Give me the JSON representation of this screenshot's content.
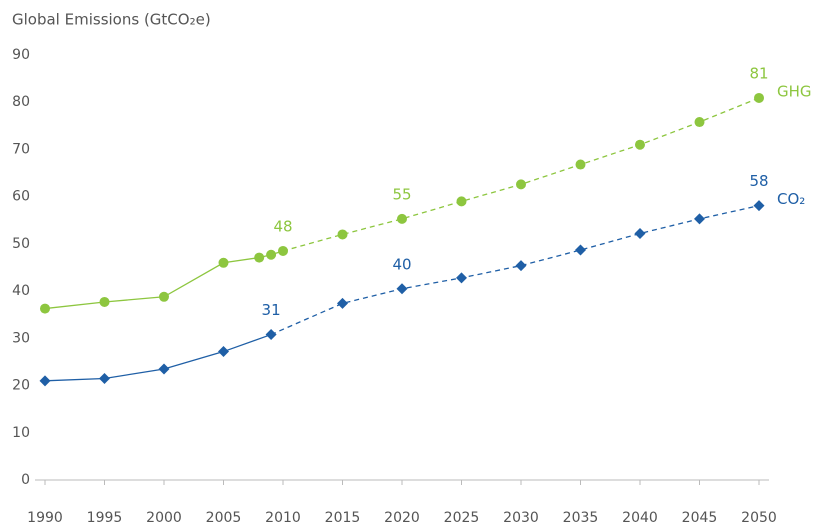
{
  "chart_data": {
    "type": "line",
    "title": "Global Emissions (GtCO₂e)",
    "x": [
      1990,
      1995,
      2000,
      2005,
      2008,
      2009,
      2010,
      2015,
      2020,
      2025,
      2030,
      2035,
      2040,
      2045,
      2050
    ],
    "series": [
      {
        "name": "GHG",
        "color": "#8dc63f",
        "marker": "circle",
        "dashed_from": 2010,
        "x": [
          1990,
          1995,
          2000,
          2005,
          2008,
          2009,
          2010,
          2015,
          2020,
          2025,
          2030,
          2035,
          2040,
          2045,
          2050
        ],
        "values": [
          36.3,
          37.7,
          38.8,
          46,
          47.1,
          47.7,
          48.5,
          52,
          55.3,
          59,
          62.6,
          66.8,
          71,
          75.8,
          80.9
        ],
        "value_labels": [
          null,
          null,
          null,
          null,
          null,
          null,
          "48",
          null,
          "55",
          null,
          null,
          null,
          null,
          null,
          "81"
        ]
      },
      {
        "name": "CO₂",
        "color": "#1f5fa6",
        "marker": "diamond",
        "dashed_from": 2009,
        "x": [
          1990,
          1995,
          2000,
          2005,
          2009,
          2015,
          2020,
          2025,
          2030,
          2035,
          2040,
          2045,
          2050
        ],
        "values": [
          21,
          21.5,
          23.5,
          27.2,
          30.8,
          37.4,
          40.5,
          42.8,
          45.4,
          48.7,
          52.2,
          55.3,
          58.1
        ],
        "value_labels": [
          null,
          null,
          null,
          null,
          "31",
          null,
          "40",
          null,
          null,
          null,
          null,
          null,
          "58"
        ]
      }
    ],
    "xlim": [
      1990,
      2050
    ],
    "xticks": [
      1990,
      1995,
      2000,
      2005,
      2010,
      2015,
      2020,
      2025,
      2030,
      2035,
      2040,
      2045,
      2050
    ],
    "ylim": [
      0,
      90
    ],
    "yticks": [
      0,
      10,
      20,
      30,
      40,
      50,
      60,
      70,
      80,
      90
    ],
    "grid": false
  }
}
